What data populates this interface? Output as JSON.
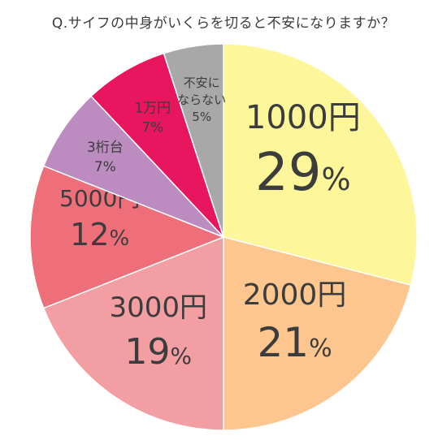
{
  "chart_data": {
    "type": "pie",
    "title": "Q.サイフの中身がいくらを切ると不安になりますか？",
    "categories": [
      "1000円",
      "2000円",
      "3000円",
      "5000円",
      "3桁台",
      "1万円",
      "不安にならない"
    ],
    "values": [
      29,
      21,
      19,
      12,
      7,
      7,
      5
    ],
    "value_labels": [
      "29%",
      "21%",
      "19%",
      "12%",
      "7%",
      "7%",
      "5%"
    ],
    "label_lines": [
      [
        "1000円"
      ],
      [
        "2000円"
      ],
      [
        "3000円"
      ],
      [
        "5000円"
      ],
      [
        "3桁台"
      ],
      [
        "1万円"
      ],
      [
        "不安に",
        "ならない"
      ]
    ],
    "colors": [
      "#FEF69A",
      "#FDC68F",
      "#F39EA3",
      "#EE6F7A",
      "#BC8BC0",
      "#E8155F",
      "#A8A8A8"
    ],
    "start": "12 o'clock",
    "direction": "clockwise"
  }
}
